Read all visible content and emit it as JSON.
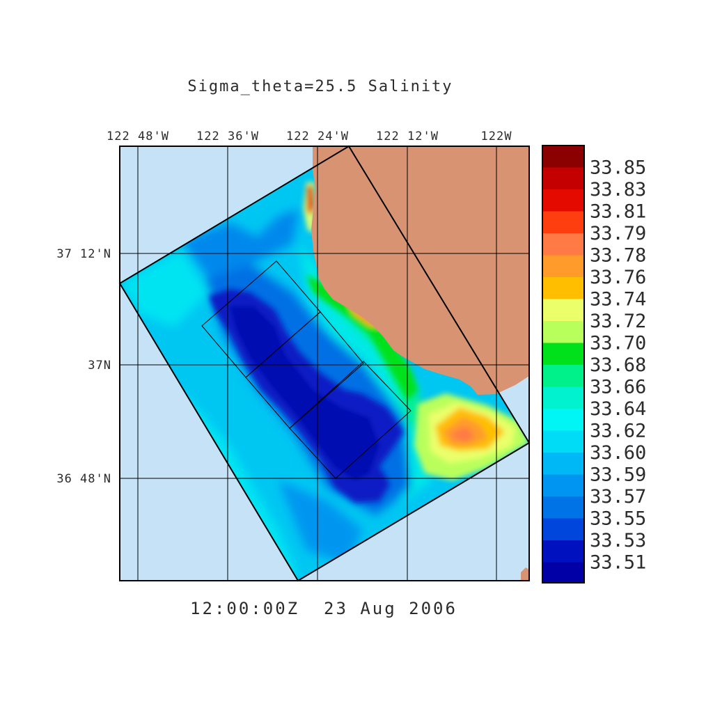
{
  "title": "Sigma_theta=25.5 Salinity",
  "timestamp": "12:00:00Z  23 Aug 2006",
  "axes": {
    "top_ticks": [
      "122 48'W",
      "122 36'W",
      "122 24'W",
      "122 12'W",
      "122W"
    ],
    "left_ticks": [
      "37 12'N",
      "37N",
      "36 48'N"
    ]
  },
  "colors": {
    "ocean_background": "#c6e2f7",
    "land": "#d89472",
    "salinity_levels": [
      {
        "label": "33.85",
        "color": "#8b0000"
      },
      {
        "label": "33.83",
        "color": "#c40000"
      },
      {
        "label": "33.81",
        "color": "#e50a00"
      },
      {
        "label": "33.79",
        "color": "#ff3e10"
      },
      {
        "label": "33.78",
        "color": "#ff7a45"
      },
      {
        "label": "33.76",
        "color": "#ff9b2a"
      },
      {
        "label": "33.74",
        "color": "#ffbf00"
      },
      {
        "label": "33.72",
        "color": "#eaff6a"
      },
      {
        "label": "33.70",
        "color": "#b9ff5c"
      },
      {
        "label": "33.68",
        "color": "#00e11c"
      },
      {
        "label": "33.66",
        "color": "#00f08a"
      },
      {
        "label": "33.64",
        "color": "#00f2cf"
      },
      {
        "label": "33.62",
        "color": "#00f5f5"
      },
      {
        "label": "33.60",
        "color": "#00dcf5"
      },
      {
        "label": "33.59",
        "color": "#00b8f5"
      },
      {
        "label": "33.57",
        "color": "#0095f0"
      },
      {
        "label": "33.55",
        "color": "#0073e6"
      },
      {
        "label": "33.53",
        "color": "#0046dd"
      },
      {
        "label": "33.51",
        "color": "#0012c0"
      }
    ],
    "colorbar_bottom": "#0000a6"
  }
}
